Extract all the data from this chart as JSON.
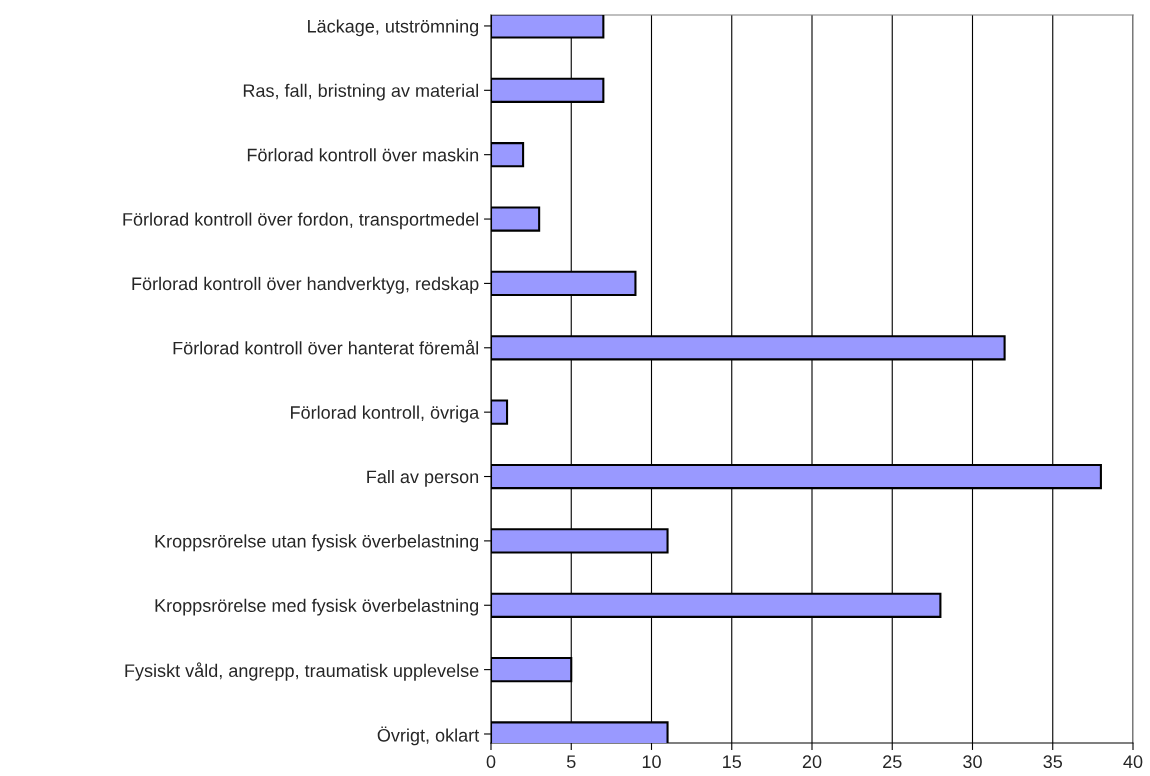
{
  "chart_data": {
    "type": "bar",
    "orientation": "horizontal",
    "categories": [
      "Läckage, utströmning",
      "Ras, fall, bristning av material",
      "Förlorad kontroll över maskin",
      "Förlorad kontroll över fordon, transportmedel",
      "Förlorad kontroll över handverktyg, redskap",
      "Förlorad kontroll över hanterat föremål",
      "Förlorad kontroll, övriga",
      "Fall av person",
      "Kroppsrörelse utan fysisk överbelastning",
      "Kroppsrörelse med fysisk överbelastning",
      "Fysiskt våld, angrepp, traumatisk upplevelse",
      "Övrigt, oklart"
    ],
    "values": [
      7,
      7,
      2,
      3,
      9,
      32,
      1,
      38,
      11,
      28,
      5,
      11
    ],
    "color": "#9999ff",
    "xlim": [
      0,
      40
    ],
    "xticks": [
      0,
      5,
      10,
      15,
      20,
      25,
      30,
      35,
      40
    ],
    "grid": "x"
  }
}
